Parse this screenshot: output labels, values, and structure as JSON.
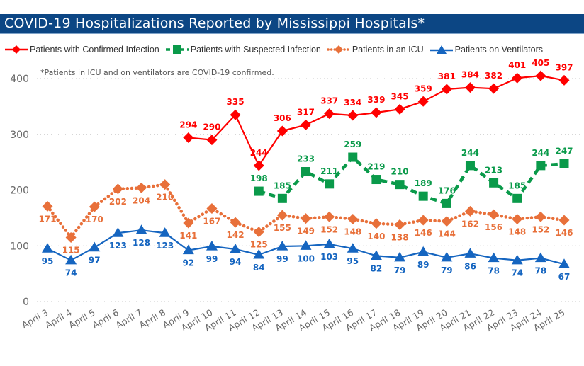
{
  "chart_data": {
    "type": "line",
    "title": "COVID-19 Hospitalizations Reported by Mississippi Hospitals*",
    "note": "*Patients in ICU and on ventilators are COVID-19 confirmed.",
    "xlabel": "",
    "ylabel": "",
    "ylim": [
      0,
      400
    ],
    "yticks": [
      "0",
      "100",
      "200",
      "300",
      "400"
    ],
    "ytick_values": [
      0,
      100,
      200,
      300,
      400
    ],
    "grid": true,
    "legend_position": "top",
    "categories": [
      "April 3",
      "April 4",
      "April 5",
      "April 6",
      "April 7",
      "April 8",
      "April 9",
      "April 10",
      "April 11",
      "April 12",
      "April 13",
      "April 14",
      "April 15",
      "April 16",
      "April 17",
      "April 18",
      "April 19",
      "April 20",
      "April 21",
      "April 22",
      "April 23",
      "April 24",
      "April 25"
    ],
    "series": [
      {
        "name": "Patients with Confirmed Infection",
        "color": "#ff0000",
        "marker": "diamond",
        "line_style": "solid",
        "values": [
          null,
          null,
          null,
          null,
          null,
          null,
          294,
          290,
          335,
          244,
          306,
          317,
          337,
          334,
          339,
          345,
          359,
          381,
          384,
          382,
          401,
          405,
          397
        ]
      },
      {
        "name": "Patients with Suspected Infection",
        "color": "#0a9a4a",
        "marker": "square",
        "line_style": "dashed",
        "values": [
          null,
          null,
          null,
          null,
          null,
          null,
          null,
          null,
          null,
          198,
          185,
          233,
          211,
          259,
          219,
          210,
          189,
          176,
          244,
          213,
          185,
          244,
          247
        ]
      },
      {
        "name": "Patients in an ICU",
        "color": "#e8703a",
        "marker": "diamond",
        "line_style": "dotted",
        "values": [
          171,
          115,
          170,
          202,
          204,
          210,
          141,
          167,
          142,
          125,
          155,
          149,
          152,
          148,
          140,
          138,
          146,
          144,
          162,
          156,
          148,
          152,
          146
        ]
      },
      {
        "name": "Patients on Ventilators",
        "color": "#1565c0",
        "marker": "triangle",
        "line_style": "solid",
        "values": [
          95,
          74,
          97,
          123,
          128,
          123,
          92,
          99,
          94,
          84,
          99,
          100,
          103,
          95,
          82,
          79,
          89,
          79,
          86,
          78,
          74,
          78,
          67
        ]
      }
    ]
  }
}
